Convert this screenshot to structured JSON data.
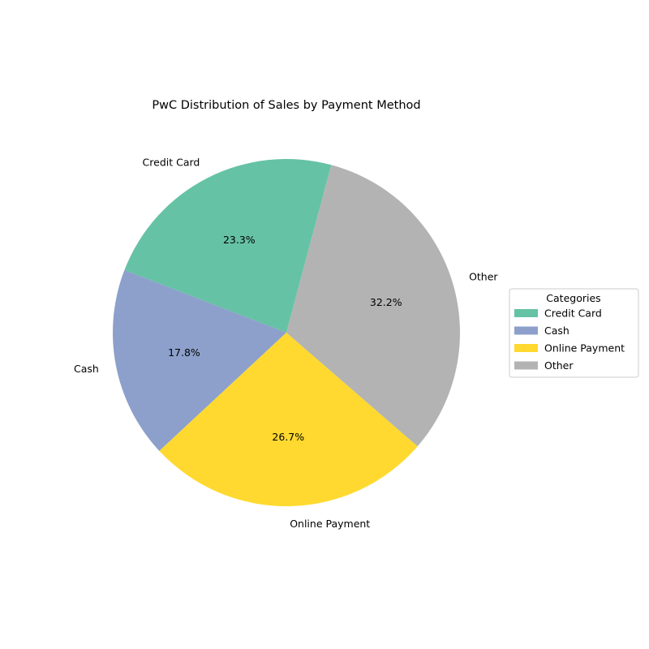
{
  "chart_data": {
    "type": "pie",
    "title": "PwC Distribution of Sales by Payment Method",
    "start_angle_deg": 75,
    "direction": "counterclockwise",
    "slices": [
      {
        "label": "Credit Card",
        "value": 23.3,
        "pct_text": "23.3%",
        "color": "#66c2a5"
      },
      {
        "label": "Cash",
        "value": 17.8,
        "pct_text": "17.8%",
        "color": "#8da0cb"
      },
      {
        "label": "Online Payment",
        "value": 26.7,
        "pct_text": "26.7%",
        "color": "#ffd92f"
      },
      {
        "label": "Other",
        "value": 32.2,
        "pct_text": "32.2%",
        "color": "#b3b3b3"
      }
    ],
    "legend": {
      "title": "Categories",
      "placement": "right",
      "entries": [
        "Credit Card",
        "Cash",
        "Online Payment",
        "Other"
      ]
    }
  }
}
